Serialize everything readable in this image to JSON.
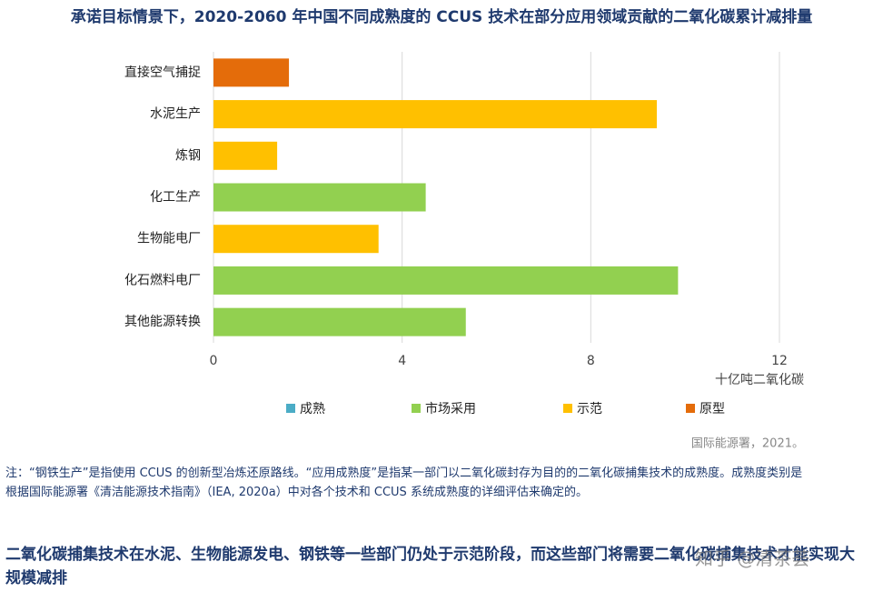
{
  "chart_data": {
    "type": "bar",
    "orientation": "horizontal",
    "title": "承诺目标情景下，2020-2060 年中国不同成熟度的 CCUS 技术在部分应用领域贡献的二氧化碳累计减排量",
    "categories": [
      "直接空气捕捉",
      "水泥生产",
      "炼钢",
      "化工生产",
      "生物能电厂",
      "化石燃料电厂",
      "其他能源转换"
    ],
    "series": [
      {
        "name": "成熟",
        "color": "#4bacc6",
        "values": [
          null,
          null,
          null,
          null,
          null,
          null,
          null
        ]
      },
      {
        "name": "市场采用",
        "color": "#92d050",
        "values": [
          null,
          null,
          null,
          4.5,
          null,
          9.85,
          5.35
        ]
      },
      {
        "name": "示范",
        "color": "#ffc000",
        "values": [
          null,
          9.4,
          1.35,
          null,
          3.5,
          null,
          null
        ]
      },
      {
        "name": "原型",
        "color": "#e46c0a",
        "values": [
          1.6,
          null,
          null,
          null,
          null,
          null,
          null
        ]
      }
    ],
    "xlim": [
      0,
      12
    ],
    "xticks": [
      0,
      4,
      8,
      12
    ],
    "x_label": "十亿吨二氧化碳",
    "grid": true,
    "legend": "bottom"
  },
  "source": "国际能源署，2021。",
  "note": "注：“钢铁生产”是指使用 CCUS 的创新型冶炼还原路线。“应用成熟度”是指某一部门以二氧化碳封存为目的的二氧化碳捕集技术的成熟度。成熟度类别是根据国际能源署《清洁能源技术指南》（IEA, 2020a）中对各个技术和 CCUS 系统成熟度的详细评估来确定的。",
  "heading": "二氧化碳捕集技术在水泥、生物能源发电、钢铁等一些部门仍处于示范阶段，而这些部门将需要二氧化碳捕集技术才能实现大规模减排",
  "watermark": "知乎 @清茶荟"
}
